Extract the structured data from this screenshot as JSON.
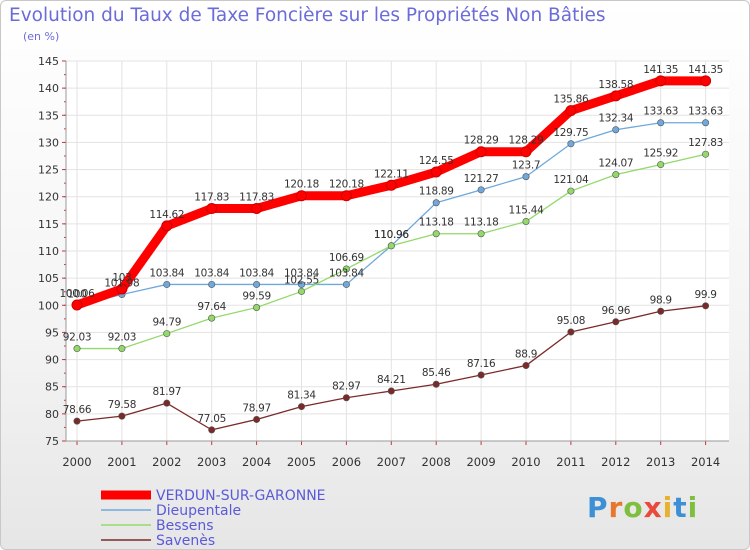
{
  "chart_data": {
    "type": "line",
    "title": "Evolution du Taux de Taxe Foncière sur les Propriétés Non Bâties",
    "subtitle": "(en %)",
    "xlabel": "",
    "ylabel": "",
    "categories": [
      "2000",
      "2001",
      "2002",
      "2003",
      "2004",
      "2005",
      "2006",
      "2007",
      "2008",
      "2009",
      "2010",
      "2011",
      "2012",
      "2013",
      "2014"
    ],
    "ylim": [
      75,
      145
    ],
    "yticks": [
      75,
      80,
      85,
      90,
      95,
      100,
      105,
      110,
      115,
      120,
      125,
      130,
      135,
      140,
      145
    ],
    "grid": true,
    "legend_position": "bottom-left",
    "series": [
      {
        "name": "VERDUN-SUR-GARONNE",
        "color": "#ff0000",
        "values": [
          100.06,
          103.0,
          114.62,
          117.83,
          117.83,
          120.18,
          120.18,
          122.11,
          124.55,
          128.29,
          128.29,
          135.86,
          138.58,
          141.35,
          141.35
        ],
        "labels": [
          "100.06",
          "103",
          "114.62",
          "117.83",
          "117.83",
          "120.18",
          "120.18",
          "122.11",
          "124.55",
          "128.29",
          "128.29",
          "135.86",
          "138.58",
          "141.35",
          "141.35"
        ]
      },
      {
        "name": "Dieupentale",
        "color": "#6fa8dc",
        "values": [
          100.0,
          101.98,
          103.84,
          103.84,
          103.84,
          103.84,
          103.84,
          110.96,
          118.89,
          121.27,
          123.7,
          129.75,
          132.34,
          133.63,
          133.63
        ],
        "labels": [
          "100",
          "101.98",
          "103.84",
          "103.84",
          "103.84",
          "103.84",
          "103.84",
          "110.96",
          "118.89",
          "121.27",
          "123.7",
          "129.75",
          "132.34",
          "133.63",
          "133.63"
        ]
      },
      {
        "name": "Bessens",
        "color": "#93d96a",
        "values": [
          92.03,
          92.03,
          94.79,
          97.64,
          99.59,
          102.55,
          106.69,
          110.96,
          113.18,
          113.18,
          115.44,
          121.04,
          124.07,
          125.92,
          127.83
        ],
        "labels": [
          "92.03",
          "92.03",
          "94.79",
          "97.64",
          "99.59",
          "102.55",
          "106.69",
          "110.96",
          "113.18",
          "113.18",
          "115.44",
          "121.04",
          "124.07",
          "125.92",
          "127.83"
        ]
      },
      {
        "name": "Savenès",
        "color": "#7b2a2a",
        "values": [
          78.66,
          79.58,
          81.97,
          77.05,
          78.97,
          81.34,
          82.97,
          84.21,
          85.46,
          87.16,
          88.9,
          95.08,
          96.96,
          98.9,
          99.9
        ],
        "labels": [
          "78.66",
          "79.58",
          "81.97",
          "77.05",
          "78.97",
          "81.34",
          "82.97",
          "84.21",
          "85.46",
          "87.16",
          "88.9",
          "95.08",
          "96.96",
          "98.9",
          "99.9"
        ]
      }
    ]
  },
  "branding": {
    "logo_text": "Proxiti"
  }
}
